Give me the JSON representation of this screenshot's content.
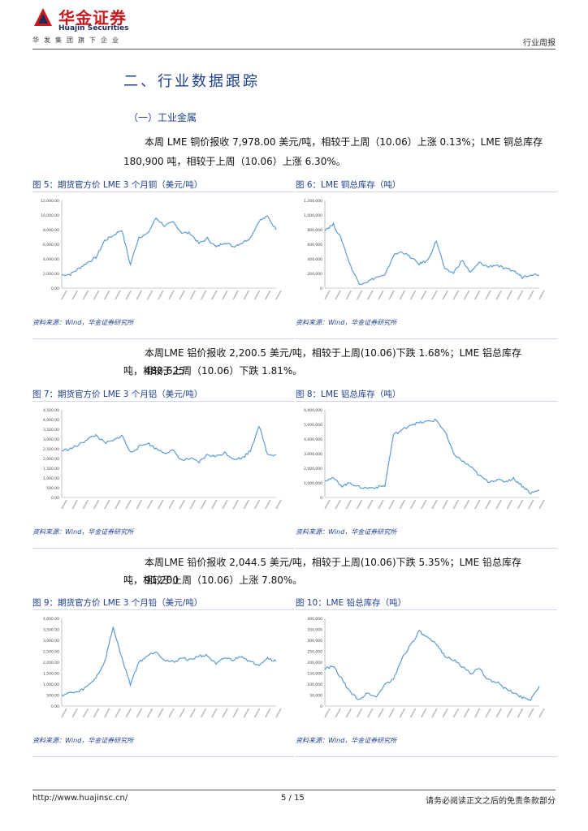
{
  "header": {
    "logo_cn": "华金证券",
    "logo_en": "Huajin Securities",
    "tagline": "华发集团旗下企业",
    "report_type": "行业周报",
    "brand_color": "#c7181f"
  },
  "section": {
    "title": "二、行业数据跟踪",
    "subtitle": "（一）工业金属"
  },
  "paragraphs": {
    "copper_l1": "本周 LME 铜价报收 7,978.00 美元/吨，相较于上周（10.06）上涨 0.13%；LME 铜总库存",
    "copper_l2": "180,900 吨，相较于上周（10.06）上涨 6.30%。",
    "aluminum_l1": "本周LME 铝价报收 2,200.5 美元/吨，相较于上周(10.06)下跌 1.68%；LME 铝总库存 488,625",
    "aluminum_l2": "吨，相较于上周（10.06）下跌 1.81%。",
    "lead_l1": "本周LME 铅价报收 2,044.5 美元/吨，相较于上周(10.06)下跌 5.35%；LME 铅总库存 91,200",
    "lead_l2": "吨，相较于上周（10.06）上涨 7.80%。"
  },
  "figures": [
    {
      "label": "图 5：",
      "title": "期货官方价 LME 3 个月铜（美元/吨）",
      "source": "资料来源：Wind，华金证券研究所"
    },
    {
      "label": "图 6：",
      "title": "LME 铜总库存（吨）",
      "source": "资料来源：Wind，华金证券研究所"
    },
    {
      "label": "图 7：",
      "title": "期货官方价 LME 3 个月铝（美元/吨）",
      "source": "资料来源：Wind，华金证券研究所"
    },
    {
      "label": "图 8：",
      "title": "LME 铝总库存（吨）",
      "source": "资料来源：Wind，华金证券研究所"
    },
    {
      "label": "图 9：",
      "title": "期货官方价 LME 3 个月铅（美元/吨）",
      "source": "资料来源：Wind，华金证券研究所"
    },
    {
      "label": "图 10：",
      "title": "LME 铅总库存（吨）",
      "source": "资料来源：Wind，华金证券研究所"
    }
  ],
  "chart_data": [
    {
      "type": "line",
      "series_color": "#5b9bd5",
      "yticks": [
        "0.00",
        "2,000.00",
        "4,000.00",
        "6,000.00",
        "8,000.00",
        "10,000.00",
        "12,000.00"
      ],
      "ylim": [
        0,
        12000
      ],
      "x": [
        0,
        4,
        8,
        12,
        16,
        20,
        24,
        28,
        32,
        36,
        40,
        44,
        48,
        52,
        56,
        60,
        64,
        68,
        72,
        76,
        80,
        84,
        88,
        92,
        96,
        100
      ],
      "values": [
        1800,
        1900,
        2700,
        3500,
        4200,
        6500,
        7200,
        8000,
        3200,
        7000,
        7400,
        9600,
        8500,
        9000,
        7600,
        7500,
        6100,
        6800,
        5600,
        6300,
        5700,
        6200,
        6900,
        9200,
        9800,
        8000
      ]
    },
    {
      "type": "line",
      "series_color": "#5b9bd5",
      "yticks": [
        "0",
        "200,000",
        "400,000",
        "600,000",
        "800,000",
        "1,000,000",
        "1,200,000"
      ],
      "ylim": [
        0,
        1200000
      ],
      "x": [
        0,
        4,
        8,
        12,
        16,
        20,
        24,
        28,
        32,
        36,
        40,
        44,
        48,
        52,
        56,
        60,
        64,
        68,
        72,
        76,
        80,
        84,
        88,
        92,
        96,
        100
      ],
      "values": [
        800000,
        870000,
        650000,
        300000,
        60000,
        90000,
        150000,
        170000,
        450000,
        500000,
        420000,
        330000,
        380000,
        650000,
        250000,
        210000,
        380000,
        210000,
        350000,
        290000,
        320000,
        260000,
        240000,
        150000,
        190000,
        181000
      ]
    },
    {
      "type": "line",
      "series_color": "#5b9bd5",
      "yticks": [
        "0.00",
        "500.00",
        "1,000.00",
        "1,500.00",
        "2,000.00",
        "2,500.00",
        "3,000.00",
        "3,500.00",
        "4,000.00",
        "4,500.00"
      ],
      "ylim": [
        0,
        4500
      ],
      "x": [
        0,
        4,
        8,
        12,
        16,
        20,
        24,
        28,
        32,
        36,
        40,
        44,
        48,
        52,
        56,
        60,
        64,
        68,
        72,
        76,
        80,
        84,
        88,
        92,
        96,
        100
      ],
      "values": [
        2400,
        2500,
        2700,
        3000,
        3200,
        2800,
        2900,
        3200,
        2300,
        2600,
        2800,
        2500,
        2300,
        2400,
        1900,
        2000,
        1800,
        2200,
        2100,
        2300,
        2000,
        2000,
        2400,
        3700,
        2200,
        2200
      ]
    },
    {
      "type": "line",
      "series_color": "#5b9bd5",
      "yticks": [
        "0",
        "1,000,000",
        "2,000,000",
        "3,000,000",
        "4,000,000",
        "5,000,000",
        "6,000,000"
      ],
      "ylim": [
        0,
        6000000
      ],
      "x": [
        0,
        4,
        8,
        12,
        16,
        20,
        24,
        28,
        32,
        36,
        40,
        44,
        48,
        52,
        56,
        60,
        64,
        68,
        72,
        76,
        80,
        84,
        88,
        92,
        96,
        100
      ],
      "values": [
        1200000,
        1300000,
        800000,
        1000000,
        700000,
        650000,
        700000,
        800000,
        4300000,
        4600000,
        5000000,
        5100000,
        5200000,
        5300000,
        4500000,
        3000000,
        2500000,
        2100000,
        1500000,
        1100000,
        1200000,
        1100000,
        1300000,
        800000,
        300000,
        489000
      ]
    },
    {
      "type": "line",
      "series_color": "#5b9bd5",
      "yticks": [
        "0.00",
        "500.00",
        "1,000.00",
        "1,500.00",
        "2,000.00",
        "2,500.00",
        "3,000.00",
        "3,500.00",
        "4,000.00"
      ],
      "ylim": [
        0,
        4000
      ],
      "x": [
        0,
        4,
        8,
        12,
        16,
        20,
        24,
        28,
        32,
        36,
        40,
        44,
        48,
        52,
        56,
        60,
        64,
        68,
        72,
        76,
        80,
        84,
        88,
        92,
        96,
        100
      ],
      "values": [
        500,
        600,
        650,
        900,
        1300,
        2000,
        3600,
        2200,
        1000,
        2000,
        2300,
        2500,
        2100,
        2000,
        2200,
        2100,
        2300,
        2300,
        1900,
        2200,
        2100,
        2300,
        2000,
        1900,
        2200,
        2045
      ]
    },
    {
      "type": "line",
      "series_color": "#5b9bd5",
      "yticks": [
        "0",
        "50,000",
        "100,000",
        "150,000",
        "200,000",
        "250,000",
        "300,000",
        "350,000",
        "400,000"
      ],
      "ylim": [
        0,
        400000
      ],
      "x": [
        0,
        4,
        8,
        12,
        16,
        20,
        24,
        28,
        32,
        36,
        40,
        44,
        48,
        52,
        56,
        60,
        64,
        68,
        72,
        76,
        80,
        84,
        88,
        92,
        96,
        100
      ],
      "values": [
        170000,
        180000,
        120000,
        60000,
        30000,
        60000,
        40000,
        100000,
        120000,
        220000,
        280000,
        340000,
        310000,
        280000,
        230000,
        210000,
        180000,
        150000,
        170000,
        120000,
        110000,
        80000,
        60000,
        40000,
        30000,
        91000
      ]
    }
  ],
  "footer": {
    "url": "http://www.huajinsc.cn/",
    "page": "5 / 15",
    "note": "请务必阅读正文之后的免责条款部分"
  }
}
